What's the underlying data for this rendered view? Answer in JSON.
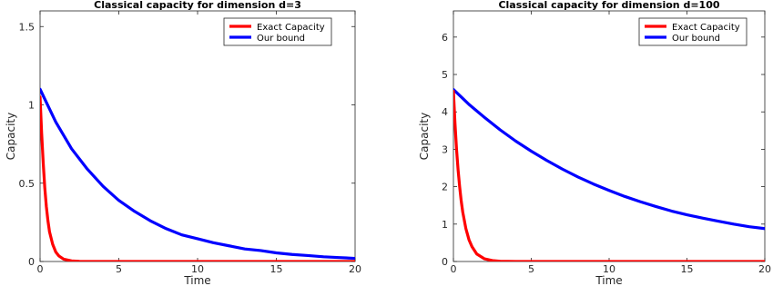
{
  "chart_data": [
    {
      "type": "line",
      "title": "Classical capacity for dimension d=3",
      "xlabel": "Time",
      "ylabel": "Capacity",
      "xlim": [
        0,
        20
      ],
      "ylim": [
        0,
        1.6
      ],
      "xticks": [
        0,
        5,
        10,
        15,
        20
      ],
      "yticks": [
        0,
        0.5,
        1,
        1.5
      ],
      "grid": false,
      "legend_position": "top-right",
      "series": [
        {
          "name": "Exact Capacity",
          "color": "#ff0000",
          "x": [
            0,
            0.1,
            0.2,
            0.3,
            0.4,
            0.5,
            0.6,
            0.8,
            1.0,
            1.2,
            1.5,
            2.0,
            2.5,
            3.0,
            4.0,
            5.0,
            10.0,
            15.0,
            20.0
          ],
          "values": [
            1.05,
            0.82,
            0.63,
            0.47,
            0.35,
            0.26,
            0.19,
            0.11,
            0.06,
            0.035,
            0.015,
            0.004,
            0.001,
            0.0,
            0.0,
            0.0,
            0.0,
            0.0,
            0.0
          ]
        },
        {
          "name": "Our bound",
          "color": "#0000ff",
          "x": [
            0,
            1,
            2,
            3,
            4,
            5,
            6,
            7,
            8,
            9,
            10,
            11,
            12,
            13,
            14,
            15,
            16,
            17,
            18,
            19,
            20
          ],
          "values": [
            1.1,
            0.89,
            0.72,
            0.59,
            0.48,
            0.39,
            0.32,
            0.26,
            0.21,
            0.17,
            0.145,
            0.12,
            0.1,
            0.08,
            0.07,
            0.055,
            0.045,
            0.038,
            0.03,
            0.025,
            0.02
          ]
        }
      ]
    },
    {
      "type": "line",
      "title": "Classical capacity for dimension d=100",
      "xlabel": "Time",
      "ylabel": "Capacity",
      "xlim": [
        0,
        20
      ],
      "ylim": [
        0,
        6.7
      ],
      "xticks": [
        0,
        5,
        10,
        15,
        20
      ],
      "yticks": [
        0,
        1,
        2,
        3,
        4,
        5,
        6
      ],
      "grid": false,
      "legend_position": "top-right",
      "series": [
        {
          "name": "Exact Capacity",
          "color": "#ff0000",
          "x": [
            0,
            0.1,
            0.2,
            0.3,
            0.4,
            0.5,
            0.6,
            0.8,
            1.0,
            1.2,
            1.5,
            2.0,
            2.5,
            3.0,
            4.0,
            5.0,
            10.0,
            15.0,
            20.0
          ],
          "values": [
            4.55,
            3.7,
            3.0,
            2.45,
            2.0,
            1.62,
            1.32,
            0.88,
            0.58,
            0.39,
            0.2,
            0.07,
            0.025,
            0.008,
            0.0,
            0.0,
            0.0,
            0.0,
            0.0
          ]
        },
        {
          "name": "Our bound",
          "color": "#0000ff",
          "x": [
            0,
            1,
            2,
            3,
            4,
            5,
            6,
            7,
            8,
            9,
            10,
            11,
            12,
            13,
            14,
            15,
            16,
            17,
            18,
            19,
            20
          ],
          "values": [
            4.6,
            4.2,
            3.85,
            3.52,
            3.22,
            2.95,
            2.7,
            2.47,
            2.26,
            2.07,
            1.9,
            1.74,
            1.6,
            1.47,
            1.35,
            1.25,
            1.16,
            1.08,
            1.0,
            0.93,
            0.88
          ]
        }
      ]
    }
  ]
}
